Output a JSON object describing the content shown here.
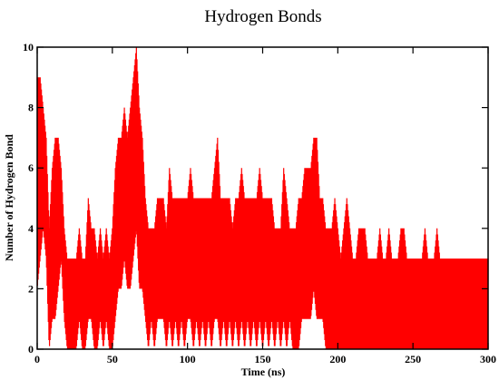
{
  "chart_data": {
    "type": "line",
    "title": "Hydrogen Bonds",
    "xlabel": "Time (ns)",
    "ylabel": "Number of Hydrogen Bond",
    "xlim": [
      0,
      300
    ],
    "ylim": [
      0,
      10
    ],
    "x_ticks": [
      0,
      50,
      100,
      150,
      200,
      250,
      300
    ],
    "y_ticks": [
      0,
      2,
      4,
      6,
      8,
      10
    ],
    "grid": false,
    "legend": "none",
    "series": [
      {
        "color": "#ff0000",
        "x": [
          0,
          2,
          4,
          6,
          8,
          10,
          12,
          14,
          16,
          18,
          20,
          22,
          24,
          26,
          28,
          30,
          32,
          34,
          36,
          38,
          40,
          42,
          44,
          46,
          48,
          50,
          52,
          54,
          56,
          58,
          60,
          62,
          64,
          66,
          68,
          70,
          72,
          74,
          76,
          78,
          80,
          82,
          84,
          86,
          88,
          90,
          92,
          94,
          96,
          98,
          100,
          102,
          104,
          106,
          108,
          110,
          112,
          114,
          116,
          118,
          120,
          122,
          124,
          126,
          128,
          130,
          132,
          134,
          136,
          138,
          140,
          142,
          144,
          146,
          148,
          150,
          152,
          154,
          156,
          158,
          160,
          162,
          164,
          166,
          168,
          170,
          172,
          174,
          176,
          178,
          180,
          182,
          184,
          186,
          188,
          190,
          192,
          194,
          196,
          198,
          200,
          202,
          204,
          206,
          208,
          210,
          212,
          214,
          216,
          218,
          220,
          222,
          224,
          226,
          228,
          230,
          232,
          234,
          236,
          238,
          240,
          242,
          244,
          246,
          248,
          250,
          252,
          254,
          256,
          258,
          260,
          262,
          264,
          266,
          268,
          270,
          272,
          274,
          276,
          278,
          280,
          282,
          284,
          286,
          288,
          290,
          292,
          294,
          296,
          298,
          300
        ],
        "y_max": [
          9,
          9,
          8,
          7,
          4,
          6,
          7,
          7,
          6,
          4,
          3,
          3,
          3,
          3,
          4,
          3,
          3,
          5,
          4,
          4,
          3,
          4,
          3,
          4,
          3,
          4,
          6,
          7,
          7,
          8,
          7,
          8,
          9,
          10,
          8,
          7,
          5,
          4,
          4,
          4,
          5,
          5,
          5,
          4,
          6,
          5,
          5,
          5,
          5,
          5,
          5,
          6,
          5,
          5,
          5,
          5,
          5,
          5,
          5,
          6,
          7,
          5,
          5,
          5,
          5,
          4,
          5,
          5,
          6,
          5,
          5,
          5,
          5,
          5,
          6,
          5,
          5,
          5,
          5,
          4,
          4,
          4,
          6,
          5,
          4,
          4,
          4,
          5,
          5,
          6,
          6,
          6,
          7,
          7,
          5,
          5,
          4,
          4,
          4,
          5,
          4,
          3,
          4,
          5,
          4,
          3,
          3,
          4,
          4,
          4,
          3,
          3,
          3,
          3,
          4,
          3,
          3,
          4,
          3,
          3,
          3,
          4,
          4,
          3,
          3,
          3,
          3,
          3,
          3,
          4,
          3,
          3,
          3,
          4,
          3,
          3,
          3,
          3,
          3,
          3,
          3,
          3,
          3,
          3,
          3,
          3,
          3,
          3,
          3,
          3,
          3
        ],
        "y_min": [
          2,
          3,
          4,
          3,
          0,
          1,
          1,
          2,
          3,
          1,
          0,
          0,
          0,
          0,
          1,
          0,
          0,
          1,
          1,
          0,
          0,
          1,
          0,
          1,
          0,
          0,
          1,
          2,
          2,
          3,
          2,
          2,
          3,
          4,
          2,
          2,
          1,
          0,
          1,
          0,
          1,
          1,
          1,
          0,
          1,
          0,
          1,
          0,
          1,
          0,
          1,
          1,
          0,
          1,
          0,
          1,
          0,
          1,
          0,
          1,
          1,
          0,
          1,
          0,
          1,
          0,
          1,
          0,
          1,
          0,
          1,
          0,
          1,
          0,
          1,
          0,
          1,
          0,
          1,
          0,
          1,
          0,
          1,
          0,
          1,
          0,
          0,
          0,
          1,
          1,
          1,
          1,
          2,
          1,
          1,
          1,
          0,
          0,
          0,
          0,
          0,
          0,
          0,
          0,
          0,
          0,
          0,
          0,
          0,
          0,
          0,
          0,
          0,
          0,
          0,
          0,
          0,
          0,
          0,
          0,
          0,
          0,
          0,
          0,
          0,
          0,
          0,
          0,
          0,
          0,
          0,
          0,
          0,
          0,
          0,
          0,
          0,
          0,
          0,
          0,
          0,
          0,
          0,
          0,
          0,
          0,
          0,
          0,
          0,
          0,
          0
        ]
      }
    ]
  }
}
